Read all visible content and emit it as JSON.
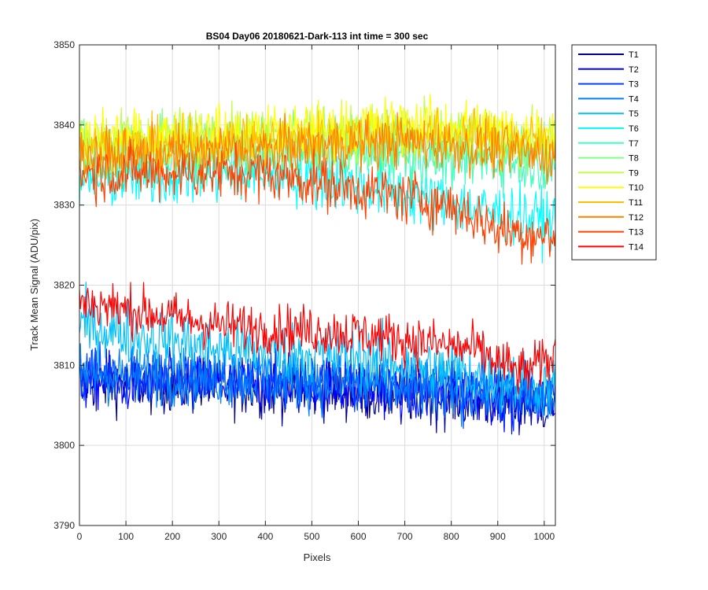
{
  "chart_data": {
    "type": "line",
    "title": "BS04 Day06 20180621-Dark-113 int time = 300 sec",
    "xlabel": "Pixels",
    "ylabel": "Track Mean Signal (ADU/pix)",
    "xlim": [
      0,
      1024
    ],
    "ylim": [
      3790,
      3850
    ],
    "xticks": [
      0,
      100,
      200,
      300,
      400,
      500,
      600,
      700,
      800,
      900,
      1000
    ],
    "yticks": [
      3790,
      3800,
      3810,
      3820,
      3830,
      3840,
      3850
    ],
    "grid": true,
    "legend_position": "outside-top-right",
    "series": [
      {
        "name": "T1",
        "color": "#00008f",
        "trend": [
          [
            0,
            3808
          ],
          [
            500,
            3807
          ],
          [
            800,
            3806
          ],
          [
            1024,
            3805
          ]
        ],
        "noise": 2.6
      },
      {
        "name": "T2",
        "color": "#0000ff",
        "trend": [
          [
            0,
            3808
          ],
          [
            500,
            3807.5
          ],
          [
            800,
            3806.5
          ],
          [
            1024,
            3805.5
          ]
        ],
        "noise": 2.6
      },
      {
        "name": "T3",
        "color": "#0040ff",
        "trend": [
          [
            0,
            3809
          ],
          [
            500,
            3808
          ],
          [
            800,
            3807
          ],
          [
            1024,
            3806
          ]
        ],
        "noise": 2.6
      },
      {
        "name": "T4",
        "color": "#0080ff",
        "trend": [
          [
            0,
            3809
          ],
          [
            500,
            3808
          ],
          [
            800,
            3807
          ],
          [
            1024,
            3806
          ]
        ],
        "noise": 2.6
      },
      {
        "name": "T5",
        "color": "#00bfff",
        "trend": [
          [
            0,
            3815
          ],
          [
            300,
            3812
          ],
          [
            600,
            3811
          ],
          [
            850,
            3809
          ],
          [
            1024,
            3807
          ]
        ],
        "noise": 2.8
      },
      {
        "name": "T6",
        "color": "#00ffff",
        "trend": [
          [
            0,
            3833
          ],
          [
            400,
            3834
          ],
          [
            650,
            3832
          ],
          [
            900,
            3829
          ],
          [
            1024,
            3828
          ]
        ],
        "noise": 2.6
      },
      {
        "name": "T7",
        "color": "#40ffbf",
        "trend": [
          [
            0,
            3835
          ],
          [
            400,
            3836
          ],
          [
            700,
            3836
          ],
          [
            1024,
            3835
          ]
        ],
        "noise": 2.4
      },
      {
        "name": "T8",
        "color": "#80ff80",
        "trend": [
          [
            0,
            3838
          ],
          [
            400,
            3838
          ],
          [
            700,
            3838
          ],
          [
            1024,
            3837
          ]
        ],
        "noise": 2.5
      },
      {
        "name": "T9",
        "color": "#bfff40",
        "trend": [
          [
            0,
            3838
          ],
          [
            400,
            3839
          ],
          [
            700,
            3839
          ],
          [
            1024,
            3838
          ]
        ],
        "noise": 2.5
      },
      {
        "name": "T10",
        "color": "#ffff00",
        "trend": [
          [
            0,
            3838
          ],
          [
            400,
            3839
          ],
          [
            700,
            3840
          ],
          [
            1024,
            3839
          ]
        ],
        "noise": 2.5
      },
      {
        "name": "T11",
        "color": "#ffbf00",
        "trend": [
          [
            0,
            3837
          ],
          [
            400,
            3838
          ],
          [
            700,
            3839
          ],
          [
            1024,
            3838
          ]
        ],
        "noise": 2.3
      },
      {
        "name": "T12",
        "color": "#ff8000",
        "trend": [
          [
            0,
            3836
          ],
          [
            400,
            3837
          ],
          [
            700,
            3838
          ],
          [
            1024,
            3836
          ]
        ],
        "noise": 2.3
      },
      {
        "name": "T13",
        "color": "#ff4000",
        "trend": [
          [
            0,
            3834
          ],
          [
            400,
            3834
          ],
          [
            600,
            3832
          ],
          [
            800,
            3830
          ],
          [
            900,
            3827
          ],
          [
            1024,
            3826
          ]
        ],
        "noise": 2.4
      },
      {
        "name": "T14",
        "color": "#ff0000",
        "trend": [
          [
            0,
            3818
          ],
          [
            300,
            3815
          ],
          [
            600,
            3814
          ],
          [
            850,
            3812
          ],
          [
            950,
            3809
          ],
          [
            1024,
            3811
          ]
        ],
        "noise": 2.2
      }
    ]
  }
}
